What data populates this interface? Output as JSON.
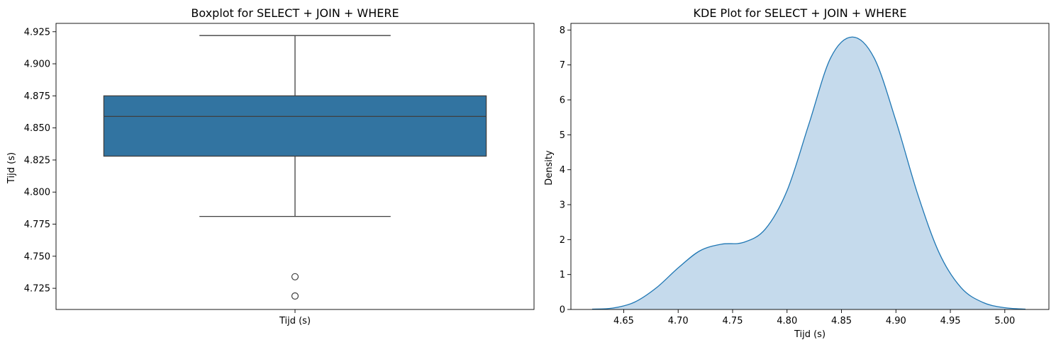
{
  "chart_data": [
    {
      "type": "box",
      "title": "Boxplot for SELECT + JOIN + WHERE",
      "xlabel": "",
      "ylabel": "Tijd (s)",
      "categories": [
        "Tijd (s)"
      ],
      "ylim": [
        4.7085,
        4.9315
      ],
      "yticks": [
        4.725,
        4.75,
        4.775,
        4.8,
        4.825,
        4.85,
        4.875,
        4.9,
        4.925
      ],
      "ytick_labels": [
        "4.725",
        "4.750",
        "4.775",
        "4.800",
        "4.825",
        "4.850",
        "4.875",
        "4.900",
        "4.925"
      ],
      "box": {
        "whisker_low": 4.781,
        "q1": 4.828,
        "median": 4.859,
        "q3": 4.875,
        "whisker_high": 4.922,
        "outliers": [
          4.734,
          4.719
        ]
      },
      "colors": {
        "box": "#3274a1",
        "line": "#3f3f3f"
      },
      "grid": false
    },
    {
      "type": "area",
      "title": "KDE Plot for SELECT + JOIN + WHERE",
      "xlabel": "Tijd (s)",
      "ylabel": "Density",
      "xlim": [
        4.6015,
        5.0405
      ],
      "ylim": [
        0,
        8.19
      ],
      "xticks": [
        4.65,
        4.7,
        4.75,
        4.8,
        4.85,
        4.9,
        4.95,
        5.0
      ],
      "xtick_labels": [
        "4.65",
        "4.70",
        "4.75",
        "4.80",
        "4.85",
        "4.90",
        "4.95",
        "5.00"
      ],
      "yticks": [
        0,
        1,
        2,
        3,
        4,
        5,
        6,
        7,
        8
      ],
      "ytick_labels": [
        "0",
        "1",
        "2",
        "3",
        "4",
        "5",
        "6",
        "7",
        "8"
      ],
      "x": [
        4.621,
        4.64,
        4.66,
        4.68,
        4.7,
        4.72,
        4.74,
        4.76,
        4.78,
        4.8,
        4.82,
        4.84,
        4.86,
        4.88,
        4.9,
        4.92,
        4.94,
        4.96,
        4.98,
        5.0,
        5.019
      ],
      "y": [
        0.01,
        0.04,
        0.21,
        0.62,
        1.19,
        1.68,
        1.87,
        1.92,
        2.3,
        3.4,
        5.3,
        7.2,
        7.8,
        7.2,
        5.4,
        3.3,
        1.6,
        0.62,
        0.2,
        0.05,
        0.01
      ],
      "colors": {
        "line": "#1f77b4",
        "fill": "#c5daec"
      },
      "grid": false
    }
  ]
}
